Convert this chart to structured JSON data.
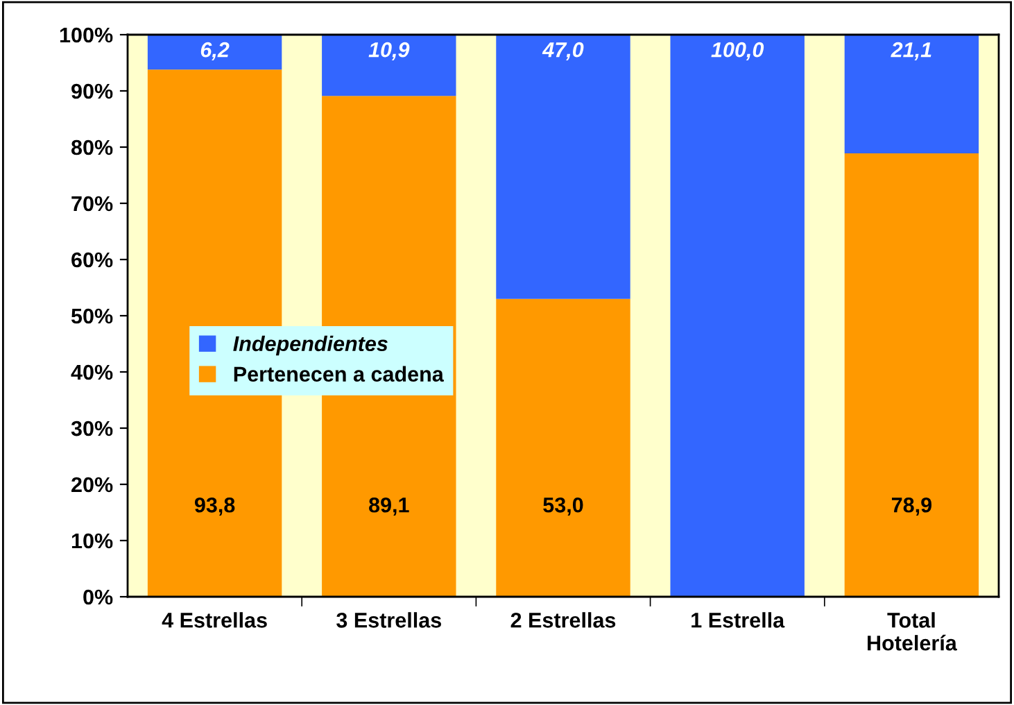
{
  "chart_data": {
    "type": "bar",
    "stacked": true,
    "categories": [
      "4 Estrellas",
      "3 Estrellas",
      "2 Estrellas",
      "1 Estrella",
      "Total Hotelería"
    ],
    "series": [
      {
        "name": "Pertenecen a cadena",
        "color": "#ff9900",
        "values": [
          93.8,
          89.1,
          53.0,
          0,
          78.9
        ],
        "value_labels": [
          "93,8",
          "89,1",
          "53,0",
          null,
          "78,9"
        ]
      },
      {
        "name": "Independientes",
        "color": "#3366ff",
        "values": [
          6.2,
          10.9,
          47.0,
          100.0,
          21.1
        ],
        "value_labels": [
          "6,2",
          "10,9",
          "47,0",
          "100,0",
          "21,1"
        ]
      }
    ],
    "ylim": [
      0,
      100
    ],
    "yticks": [
      {
        "value": 0,
        "label": "0%"
      },
      {
        "value": 10,
        "label": "10%"
      },
      {
        "value": 20,
        "label": "20%"
      },
      {
        "value": 30,
        "label": "30%"
      },
      {
        "value": 40,
        "label": "40%"
      },
      {
        "value": 50,
        "label": "50%"
      },
      {
        "value": 60,
        "label": "60%"
      },
      {
        "value": 70,
        "label": "70%"
      },
      {
        "value": 80,
        "label": "80%"
      },
      {
        "value": 90,
        "label": "90%"
      },
      {
        "value": 100,
        "label": "100%"
      }
    ],
    "bands": [
      {
        "axis": "y",
        "from": 0,
        "to": 100,
        "color": "#ffffcc"
      }
    ],
    "grid": false,
    "legend": "left"
  }
}
